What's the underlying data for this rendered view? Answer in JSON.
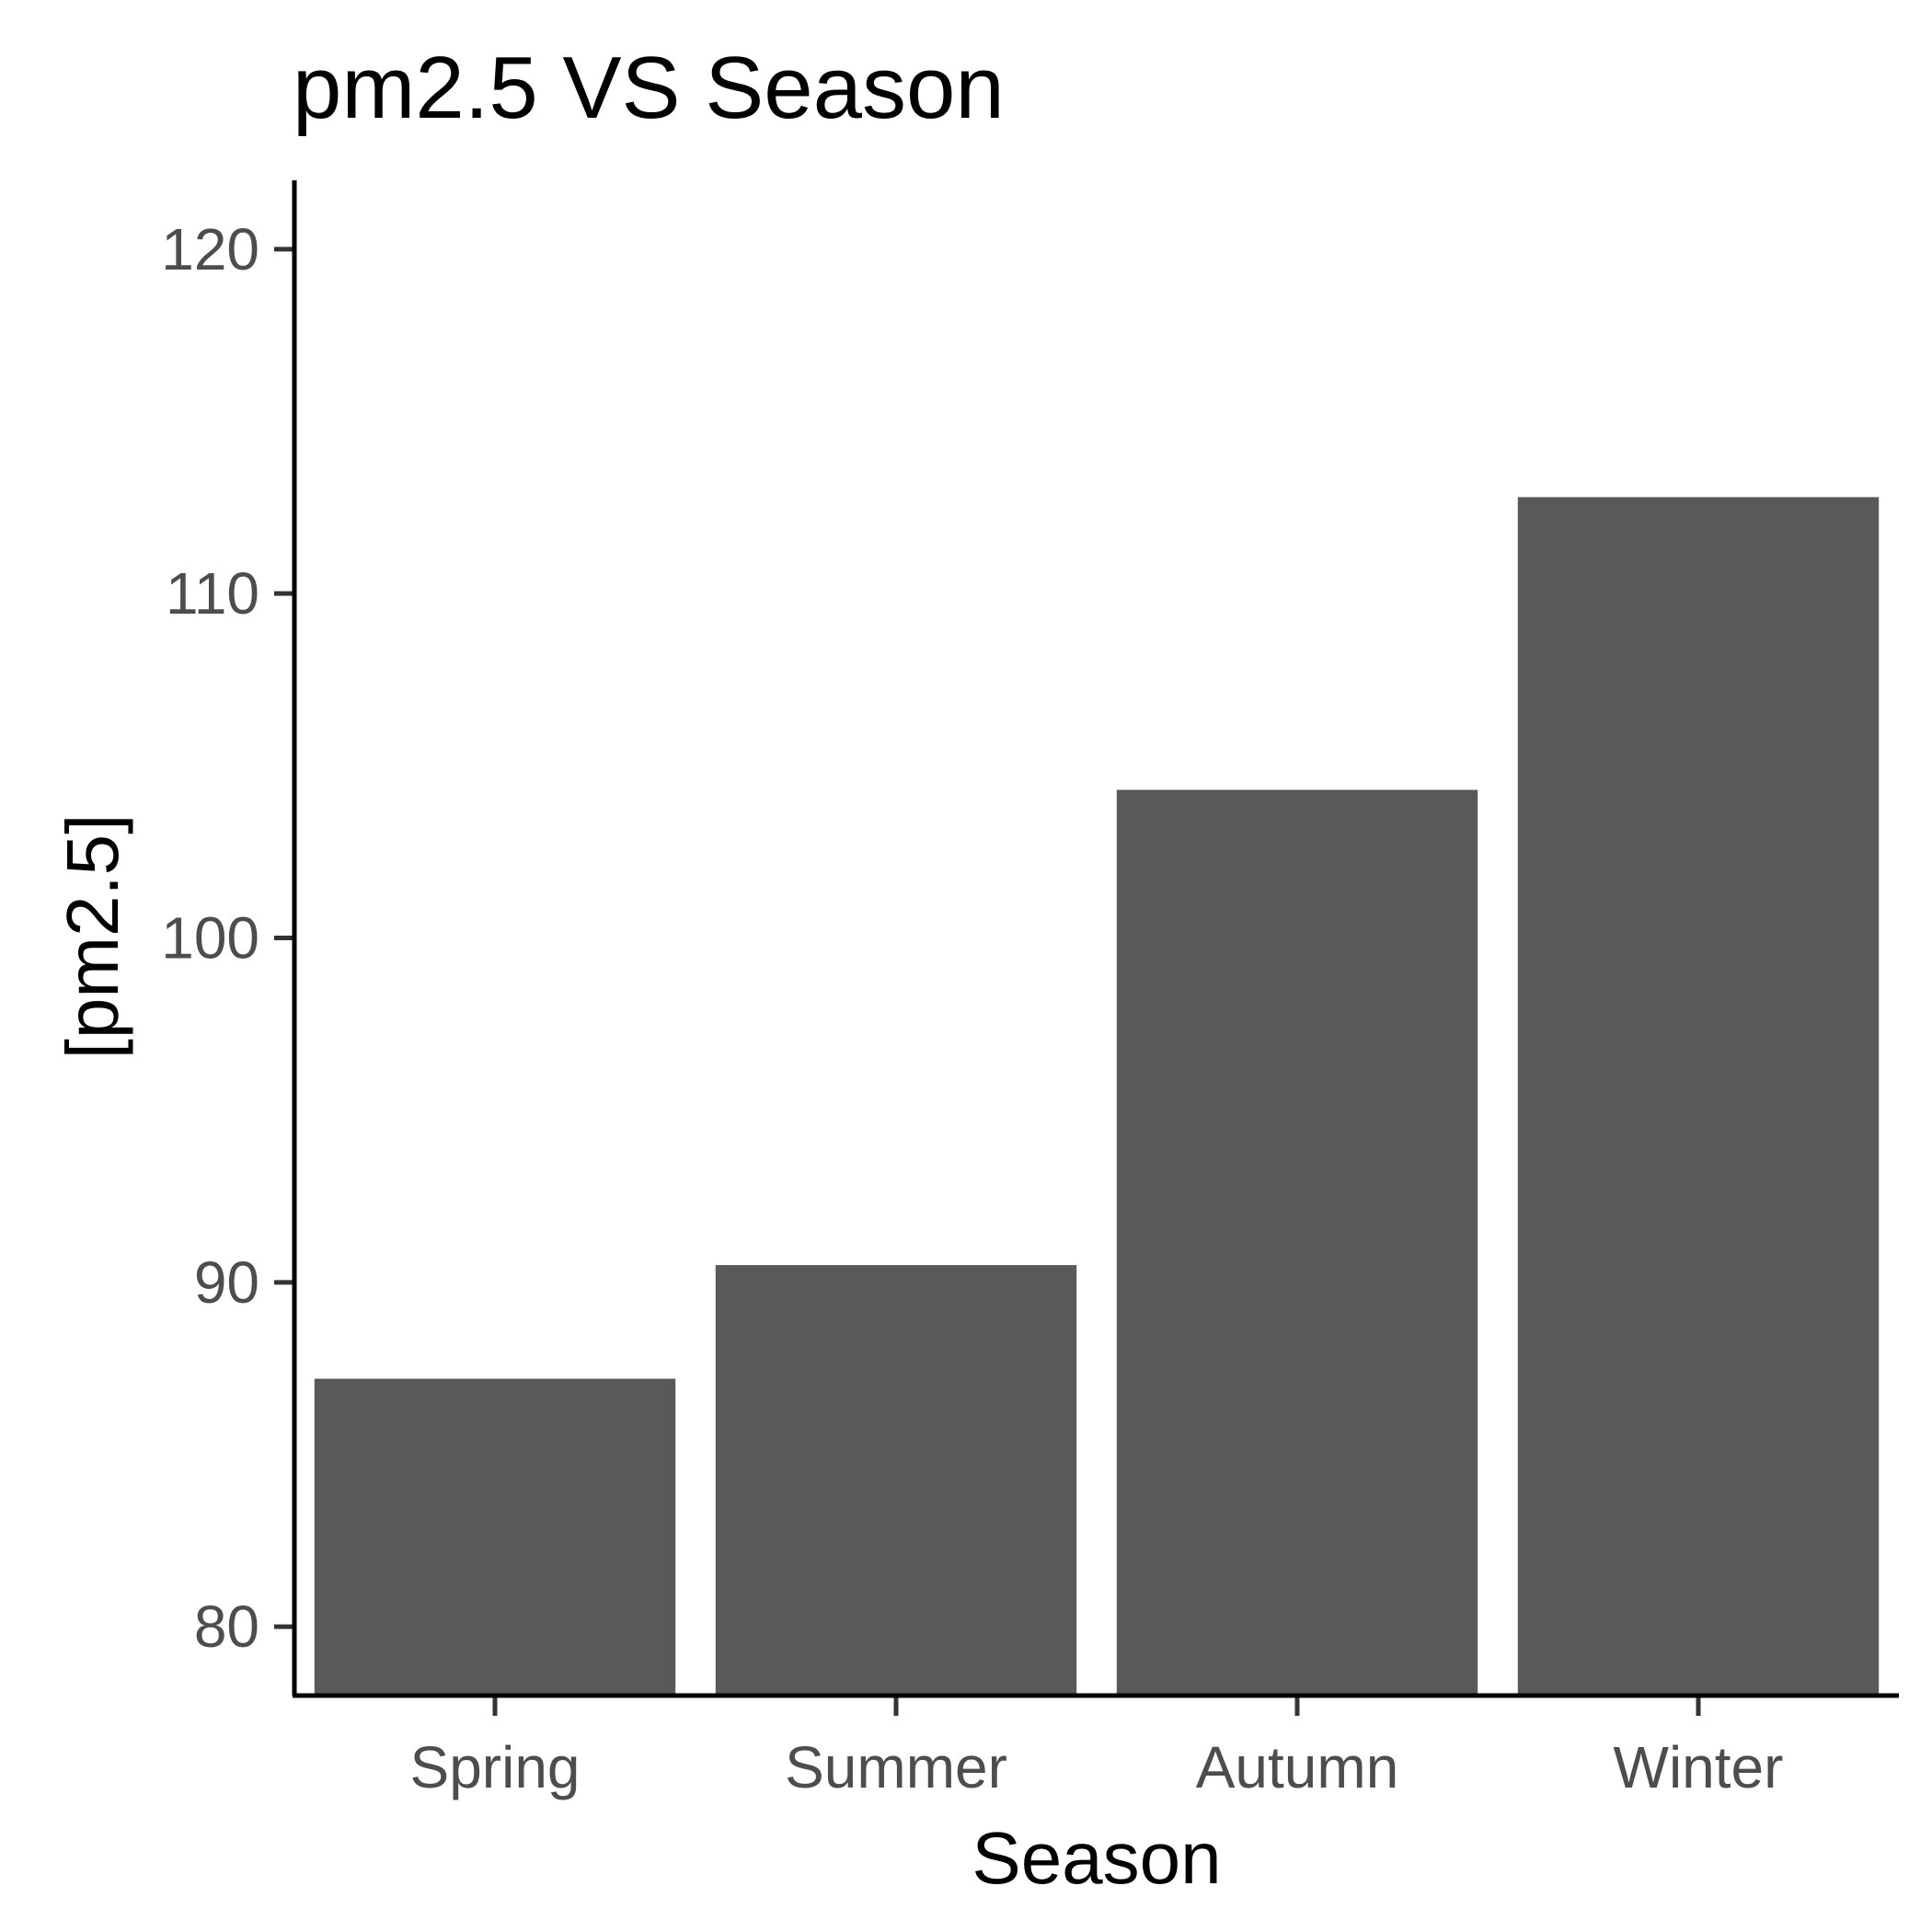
{
  "chart_data": {
    "type": "bar",
    "title": "pm2.5 VS Season",
    "xlabel": "Season",
    "ylabel": "[pm2.5]",
    "categories": [
      "Spring",
      "Summer",
      "Autumn",
      "Winter"
    ],
    "values": [
      87.2,
      90.5,
      104.3,
      112.8
    ],
    "ylim": [
      78,
      122
    ],
    "yticks": [
      80,
      90,
      100,
      110,
      120
    ],
    "grid": false,
    "legend": "none",
    "colors": {
      "bar": "#595959",
      "axis": "#000000",
      "tick_label": "#4d4d4d"
    }
  }
}
